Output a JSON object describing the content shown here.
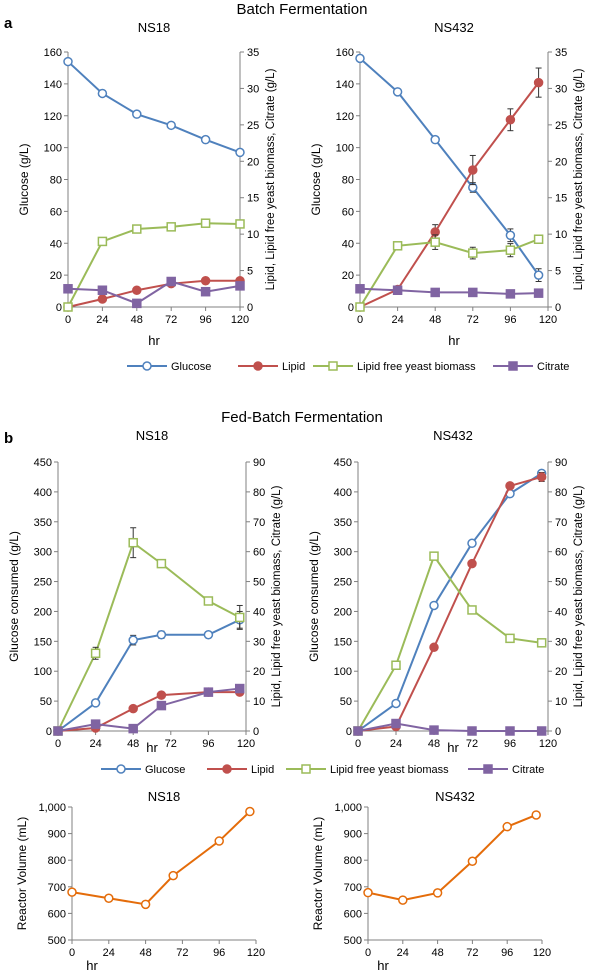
{
  "colors": {
    "glucose": "#4f81bd",
    "lipid": "#c0504d",
    "biomass": "#9bbb59",
    "citrate": "#8064a2",
    "volume": "#e46c0a",
    "axis": "#808080"
  },
  "panel_a": {
    "letter": "a",
    "title": "Batch Fermentation"
  },
  "panel_b": {
    "letter": "b",
    "title": "Fed-Batch Fermentation"
  },
  "legend_a": {
    "glucose": "Glucose",
    "lipid": "Lipid",
    "biomass": "Lipid free yeast biomass",
    "citrate": "Citrate"
  },
  "legend_b": {
    "glucose": "Glucose",
    "lipid": "Lipid",
    "biomass": "Lipid free yeast biomass",
    "citrate": "Citrate"
  },
  "chart_data": [
    {
      "type": "line",
      "title": "NS18",
      "xlabel": "hr",
      "ylabel": "Glucose (g/L)",
      "y2label": "Lipid, Lipid free yeast biomass, Citrate (g/L)",
      "x_ticks": [
        "0",
        "24",
        "48",
        "72",
        "96",
        "120"
      ],
      "xlim": [
        0,
        120
      ],
      "ylim": [
        0,
        160
      ],
      "y_ticks": [
        "0",
        "20",
        "40",
        "60",
        "80",
        "100",
        "120",
        "140",
        "160"
      ],
      "y2lim": [
        0,
        35
      ],
      "y2_ticks": [
        "0",
        "5",
        "10",
        "15",
        "20",
        "25",
        "30",
        "35"
      ],
      "series": [
        {
          "name": "Glucose",
          "axis": "left",
          "x": [
            0,
            24,
            48,
            72,
            96,
            120
          ],
          "values": [
            154,
            134,
            121,
            114,
            105,
            97
          ],
          "err": [
            0,
            0,
            0,
            0,
            0,
            0
          ]
        },
        {
          "name": "Lipid",
          "axis": "right",
          "x": [
            0,
            24,
            48,
            72,
            96,
            120
          ],
          "values": [
            0,
            1.1,
            2.3,
            3.2,
            3.6,
            3.6
          ],
          "err": [
            0,
            0,
            0,
            0,
            0,
            0
          ]
        },
        {
          "name": "Lipid free yeast biomass",
          "axis": "right",
          "x": [
            0,
            24,
            48,
            72,
            96,
            120
          ],
          "values": [
            0,
            9,
            10.7,
            11,
            11.5,
            11.4
          ],
          "err": [
            0,
            0,
            0,
            0,
            0,
            0
          ]
        },
        {
          "name": "Citrate",
          "axis": "right",
          "x": [
            0,
            24,
            48,
            72,
            96,
            120
          ],
          "values": [
            2.5,
            2.3,
            0.5,
            3.5,
            2.1,
            2.9
          ],
          "err": [
            0,
            0,
            0,
            0,
            0,
            0
          ]
        }
      ]
    },
    {
      "type": "line",
      "title": "NS432",
      "xlabel": "hr",
      "ylabel": "Glucose (g/L)",
      "y2label": "Lipid, Lipid free yeast biomass, Citrate (g/L)",
      "x_ticks": [
        "0",
        "24",
        "48",
        "72",
        "96",
        "120"
      ],
      "xlim": [
        0,
        120
      ],
      "ylim": [
        0,
        160
      ],
      "y_ticks": [
        "0",
        "20",
        "40",
        "60",
        "80",
        "100",
        "120",
        "140",
        "160"
      ],
      "y2lim": [
        0,
        35
      ],
      "y2_ticks": [
        "0",
        "5",
        "10",
        "15",
        "20",
        "25",
        "30",
        "35"
      ],
      "series": [
        {
          "name": "Glucose",
          "axis": "left",
          "x": [
            0,
            24,
            48,
            72,
            96,
            114
          ],
          "values": [
            156,
            135,
            105,
            75,
            45,
            20
          ],
          "err": [
            0,
            0,
            0,
            3,
            4,
            4
          ]
        },
        {
          "name": "Lipid",
          "axis": "right",
          "x": [
            0,
            24,
            48,
            72,
            96,
            114
          ],
          "values": [
            0,
            2.4,
            10.3,
            18.8,
            25.7,
            30.8
          ],
          "err": [
            0,
            0,
            1,
            2,
            1.5,
            2
          ]
        },
        {
          "name": "Lipid free yeast biomass",
          "axis": "right",
          "x": [
            0,
            24,
            48,
            72,
            96,
            114
          ],
          "values": [
            0,
            8.4,
            8.9,
            7.4,
            7.8,
            9.3
          ],
          "err": [
            0,
            0,
            1,
            0.8,
            0.9,
            0.3
          ]
        },
        {
          "name": "Citrate",
          "axis": "right",
          "x": [
            0,
            24,
            48,
            72,
            96,
            114
          ],
          "values": [
            2.5,
            2.3,
            2.0,
            2.0,
            1.8,
            1.9
          ],
          "err": [
            0,
            0,
            0,
            0,
            0,
            0
          ]
        }
      ]
    },
    {
      "type": "line",
      "title": "NS18",
      "xlabel": "hr",
      "ylabel": "Glucose consumed (g/L)",
      "y2label": "Lipid, Lipid free yeast biomass, Citrate (g/L)",
      "x_ticks": [
        "0",
        "24",
        "48",
        "72",
        "96",
        "120"
      ],
      "xlim": [
        0,
        120
      ],
      "ylim": [
        0,
        450
      ],
      "y_ticks": [
        "0",
        "50",
        "100",
        "150",
        "200",
        "250",
        "300",
        "350",
        "400",
        "450"
      ],
      "y2lim": [
        0,
        90
      ],
      "y2_ticks": [
        "0",
        "10",
        "20",
        "30",
        "40",
        "50",
        "60",
        "70",
        "80",
        "90"
      ],
      "series": [
        {
          "name": "Glucose",
          "axis": "left",
          "x": [
            0,
            24,
            48,
            66,
            96,
            116
          ],
          "values": [
            0,
            47,
            152,
            161,
            161,
            186
          ],
          "err": [
            0,
            0,
            8,
            6,
            0,
            14
          ]
        },
        {
          "name": "Lipid",
          "axis": "right",
          "x": [
            0,
            24,
            48,
            66,
            96,
            116
          ],
          "values": [
            0,
            1,
            7.5,
            12,
            13,
            13
          ],
          "err": [
            0,
            0,
            0,
            0,
            0,
            0
          ]
        },
        {
          "name": "Lipid free yeast biomass",
          "axis": "right",
          "x": [
            0,
            24,
            48,
            66,
            96,
            116
          ],
          "values": [
            0,
            26,
            63,
            56,
            43.5,
            38
          ],
          "err": [
            0,
            2,
            5,
            1,
            0,
            4
          ]
        },
        {
          "name": "Citrate",
          "axis": "right",
          "x": [
            0,
            24,
            48,
            66,
            96,
            116
          ],
          "values": [
            0,
            2.3,
            0.8,
            8.5,
            13,
            14.2
          ],
          "err": [
            0,
            0,
            0,
            0,
            0,
            0
          ]
        }
      ]
    },
    {
      "type": "line",
      "title": "NS432",
      "xlabel": "hr",
      "ylabel": "Glucose consumed (g/L)",
      "y2label": "Lipid, Lipid free yeast biomass, Citrate (g/L)",
      "x_ticks": [
        "0",
        "24",
        "48",
        "72",
        "96",
        "120"
      ],
      "xlim": [
        0,
        120
      ],
      "ylim": [
        0,
        450
      ],
      "y_ticks": [
        "0",
        "50",
        "100",
        "150",
        "200",
        "250",
        "300",
        "350",
        "400",
        "450"
      ],
      "y2lim": [
        0,
        90
      ],
      "y2_ticks": [
        "0",
        "10",
        "20",
        "30",
        "40",
        "50",
        "60",
        "70",
        "80",
        "90"
      ],
      "series": [
        {
          "name": "Glucose",
          "axis": "left",
          "x": [
            0,
            24,
            48,
            72,
            96,
            116
          ],
          "values": [
            0,
            46,
            210,
            314,
            397,
            431
          ],
          "err": [
            0,
            0,
            0,
            0,
            0,
            0
          ]
        },
        {
          "name": "Lipid",
          "axis": "right",
          "x": [
            0,
            24,
            48,
            72,
            96,
            116
          ],
          "values": [
            0,
            1.5,
            28,
            56,
            82,
            85
          ],
          "err": [
            0,
            0,
            0,
            0,
            0,
            1.5
          ]
        },
        {
          "name": "Lipid free yeast biomass",
          "axis": "right",
          "x": [
            0,
            24,
            48,
            72,
            96,
            116
          ],
          "values": [
            0,
            22,
            58.5,
            40.5,
            31,
            29.5
          ],
          "err": [
            0,
            0,
            1,
            0,
            0,
            1
          ]
        },
        {
          "name": "Citrate",
          "axis": "right",
          "x": [
            0,
            24,
            48,
            72,
            96,
            116
          ],
          "values": [
            0,
            2.5,
            0.3,
            0,
            0,
            0
          ],
          "err": [
            0,
            0,
            0,
            0,
            0,
            0
          ]
        }
      ]
    },
    {
      "type": "line",
      "title": "NS18",
      "xlabel": "hr",
      "ylabel": "Reactor Volume (mL)",
      "x_ticks": [
        "0",
        "24",
        "48",
        "72",
        "96",
        "120"
      ],
      "xlim": [
        0,
        120
      ],
      "ylim": [
        500,
        1000
      ],
      "y_ticks": [
        "500",
        "600",
        "700",
        "800",
        "900",
        "1,000"
      ],
      "series": [
        {
          "name": "Reactor Volume",
          "axis": "left",
          "x": [
            0,
            24,
            48,
            66,
            96,
            116
          ],
          "values": [
            680,
            657,
            634,
            742,
            872,
            983
          ],
          "err": [
            0,
            0,
            0,
            0,
            0,
            0
          ]
        }
      ]
    },
    {
      "type": "line",
      "title": "NS432",
      "xlabel": "hr",
      "ylabel": "Reactor Volume (mL)",
      "x_ticks": [
        "0",
        "24",
        "48",
        "72",
        "96",
        "120"
      ],
      "xlim": [
        0,
        120
      ],
      "ylim": [
        500,
        1000
      ],
      "y_ticks": [
        "500",
        "600",
        "700",
        "800",
        "900",
        "1,000"
      ],
      "series": [
        {
          "name": "Reactor Volume",
          "axis": "left",
          "x": [
            0,
            24,
            48,
            72,
            96,
            116
          ],
          "values": [
            678,
            650,
            677,
            796,
            926,
            970
          ],
          "err": [
            0,
            0,
            0,
            0,
            0,
            0
          ]
        }
      ]
    }
  ]
}
